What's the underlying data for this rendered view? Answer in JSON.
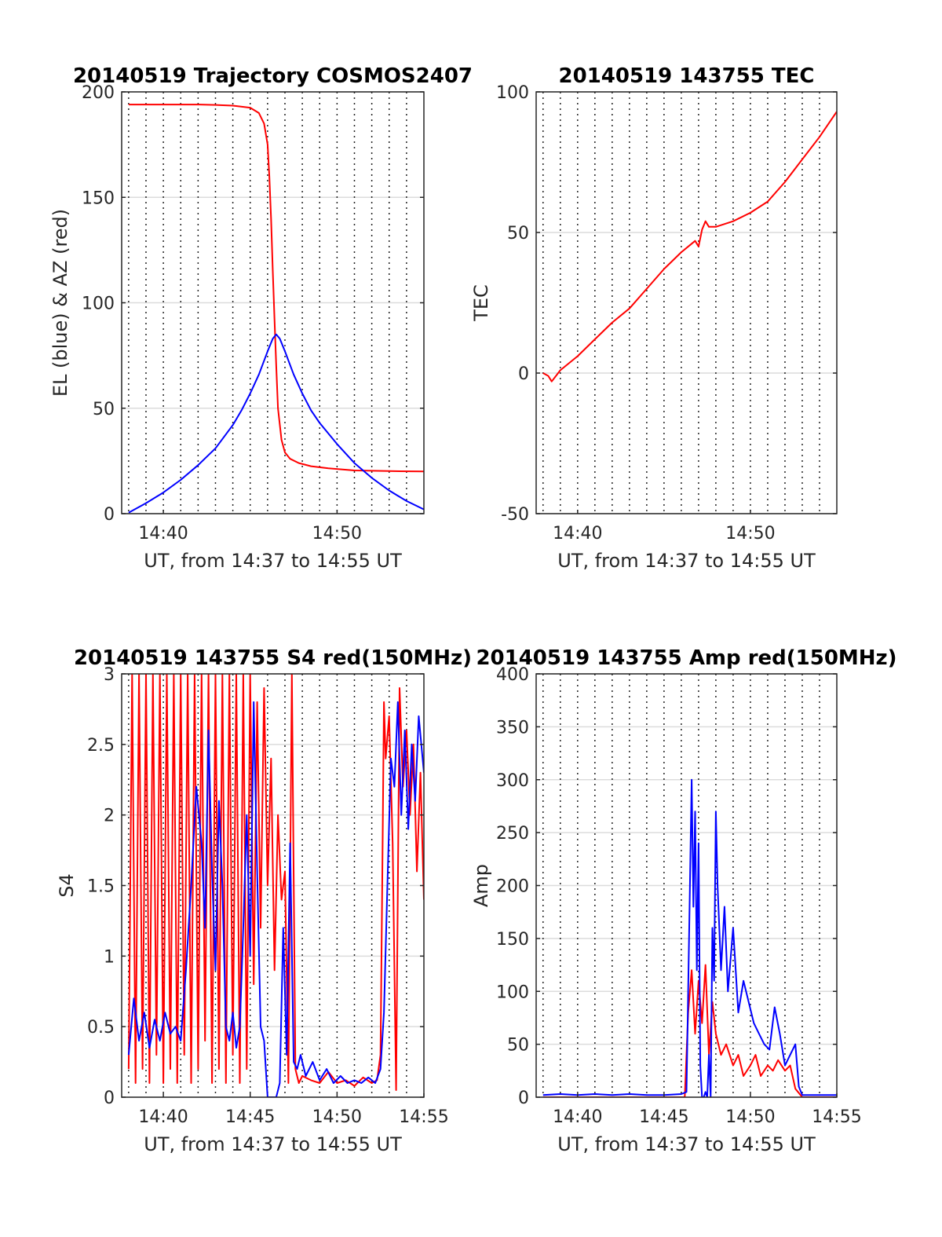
{
  "chart_data": [
    {
      "type": "line",
      "title": "20140519 Trajectory COSMOS2407",
      "xlabel": "UT, from 14:37 to 14:55 UT",
      "ylabel": "EL (blue) & AZ (red)",
      "xlim": [
        37.6,
        55
      ],
      "ylim": [
        0,
        200
      ],
      "yticks": [
        0,
        50,
        100,
        150,
        200
      ],
      "xticks": [
        {
          "v": 40,
          "label": "14:40"
        },
        {
          "v": 50,
          "label": "14:50"
        }
      ],
      "grid": true,
      "series": [
        {
          "color": "#ff0000",
          "x": [
            38,
            40,
            42,
            43,
            44,
            45,
            45.5,
            45.8,
            46.0,
            46.1,
            46.2,
            46.3,
            46.4,
            46.5,
            46.6,
            46.8,
            47.0,
            47.3,
            47.8,
            48.5,
            49.5,
            51,
            53,
            55
          ],
          "y": [
            194,
            194,
            194,
            193.8,
            193.5,
            192.5,
            190,
            185,
            175,
            160,
            140,
            115,
            92,
            70,
            50,
            35,
            29,
            26,
            24,
            22.5,
            21.5,
            20.5,
            20.2,
            20
          ]
        },
        {
          "color": "#0000ff",
          "x": [
            38,
            39,
            40,
            41,
            42,
            43,
            44,
            44.5,
            45,
            45.5,
            46,
            46.3,
            46.5,
            46.7,
            47,
            47.5,
            48,
            48.5,
            49,
            50,
            51,
            52,
            53,
            54,
            55
          ],
          "y": [
            0.5,
            5,
            10,
            16,
            23,
            31,
            42,
            49,
            57,
            66,
            77,
            83,
            85,
            83,
            77,
            66,
            57,
            49,
            43,
            33,
            24,
            17,
            11,
            6,
            2
          ]
        }
      ]
    },
    {
      "type": "line",
      "title": "20140519 143755 TEC",
      "xlabel": "UT, from 14:37 to 14:55 UT",
      "ylabel": "TEC",
      "xlim": [
        37.6,
        55
      ],
      "ylim": [
        -50,
        100
      ],
      "yticks": [
        -50,
        0,
        50,
        100
      ],
      "xticks": [
        {
          "v": 40,
          "label": "14:40"
        },
        {
          "v": 50,
          "label": "14:50"
        }
      ],
      "grid": true,
      "series": [
        {
          "color": "#ff0000",
          "x": [
            38,
            38.3,
            38.5,
            39,
            40,
            41,
            42,
            43,
            44,
            45,
            46,
            46.6,
            46.8,
            47.0,
            47.2,
            47.4,
            47.6,
            48,
            49,
            50,
            51,
            52,
            53,
            54,
            55
          ],
          "y": [
            0,
            -1,
            -3,
            1,
            6,
            12,
            18,
            23,
            30,
            37,
            43,
            46,
            47,
            45,
            51,
            54,
            52,
            52,
            54,
            57,
            61,
            68,
            76,
            84,
            93
          ]
        }
      ]
    },
    {
      "type": "line",
      "title": "20140519 143755 S4 red(150MHz)",
      "xlabel": "UT, from 14:37 to 14:55 UT",
      "ylabel": "S4",
      "xlim": [
        37.6,
        55
      ],
      "ylim": [
        0,
        3
      ],
      "yticks": [
        0,
        0.5,
        1,
        1.5,
        2,
        2.5,
        3
      ],
      "ytick_labels": [
        "0",
        "0.5",
        "1",
        "1.5",
        "2",
        "2.5",
        "3"
      ],
      "xticks": [
        {
          "v": 40,
          "label": "14:40"
        },
        {
          "v": 45,
          "label": "14:45"
        },
        {
          "v": 50,
          "label": "14:50"
        },
        {
          "v": 55,
          "label": "14:55"
        }
      ],
      "grid": true,
      "series": [
        {
          "color": "#ff0000",
          "x": [
            38.0,
            38.2,
            38.4,
            38.6,
            38.8,
            39.0,
            39.2,
            39.4,
            39.6,
            39.8,
            40.0,
            40.2,
            40.4,
            40.6,
            40.8,
            41.0,
            41.2,
            41.4,
            41.6,
            41.8,
            42.0,
            42.2,
            42.4,
            42.6,
            42.8,
            43.0,
            43.2,
            43.4,
            43.6,
            43.8,
            44.0,
            44.2,
            44.4,
            44.6,
            44.8,
            45.0,
            45.2,
            45.4,
            45.6,
            45.8,
            46.0,
            46.2,
            46.4,
            46.6,
            46.8,
            47.0,
            47.2,
            47.4,
            47.6,
            47.8,
            48.0,
            48.5,
            49.0,
            49.5,
            50.0,
            50.5,
            51.0,
            51.5,
            52.0,
            52.3,
            52.5,
            52.6,
            52.7,
            52.8,
            53.0,
            53.2,
            53.4,
            53.6,
            53.8,
            54.0,
            54.2,
            54.4,
            54.6,
            54.8,
            55.0
          ],
          "y": [
            0.2,
            3.0,
            0.1,
            3.0,
            0.2,
            3.0,
            0.1,
            3.0,
            0.3,
            3.0,
            0.1,
            3.0,
            0.2,
            3.0,
            0.1,
            3.0,
            0.3,
            3.0,
            0.1,
            3.0,
            0.2,
            3.0,
            0.4,
            3.0,
            0.1,
            3.0,
            0.2,
            3.0,
            0.1,
            3.0,
            0.3,
            3.0,
            0.1,
            3.0,
            0.2,
            3.0,
            0.8,
            2.8,
            1.2,
            2.9,
            1.5,
            2.4,
            0.9,
            2.0,
            1.4,
            1.6,
            0.1,
            3.0,
            0.2,
            0.1,
            0.15,
            0.12,
            0.1,
            0.18,
            0.1,
            0.12,
            0.08,
            0.14,
            0.1,
            0.12,
            0.3,
            1.5,
            2.8,
            2.4,
            2.7,
            1.8,
            0.05,
            2.9,
            2.2,
            2.6,
            2.0,
            2.5,
            1.6,
            2.3,
            1.4
          ]
        },
        {
          "color": "#0000ff",
          "x": [
            38.0,
            38.3,
            38.6,
            38.9,
            39.2,
            39.5,
            39.8,
            40.1,
            40.4,
            40.7,
            41.0,
            41.3,
            41.6,
            41.9,
            42.2,
            42.4,
            42.6,
            42.8,
            43.0,
            43.2,
            43.4,
            43.6,
            43.8,
            44.0,
            44.2,
            44.4,
            44.6,
            44.8,
            45.0,
            45.2,
            45.4,
            45.6,
            45.8,
            46.0,
            46.1,
            46.3,
            46.5,
            46.7,
            46.9,
            47.1,
            47.3,
            47.5,
            47.7,
            47.9,
            48.2,
            48.6,
            49.0,
            49.4,
            49.8,
            50.2,
            50.6,
            51.0,
            51.4,
            51.8,
            52.2,
            52.5,
            52.7,
            52.9,
            53.1,
            53.3,
            53.5,
            53.7,
            53.9,
            54.1,
            54.3,
            54.5,
            54.7,
            55.0
          ],
          "y": [
            0.3,
            0.7,
            0.4,
            0.6,
            0.35,
            0.55,
            0.4,
            0.6,
            0.45,
            0.5,
            0.4,
            0.9,
            1.5,
            2.2,
            1.8,
            1.2,
            2.6,
            1.6,
            0.9,
            2.1,
            1.5,
            0.5,
            0.4,
            0.6,
            0.35,
            0.5,
            1.2,
            2.0,
            1.0,
            2.8,
            1.6,
            0.5,
            0.4,
            0.0,
            0.0,
            0.0,
            0.0,
            0.1,
            1.2,
            0.3,
            1.8,
            0.25,
            0.2,
            0.3,
            0.15,
            0.25,
            0.12,
            0.2,
            0.1,
            0.15,
            0.1,
            0.12,
            0.1,
            0.14,
            0.1,
            0.2,
            0.6,
            1.5,
            2.4,
            2.2,
            2.8,
            2.0,
            2.6,
            1.9,
            2.5,
            2.1,
            2.7,
            2.3
          ]
        }
      ]
    },
    {
      "type": "line",
      "title": "20140519 143755 Amp red(150MHz)",
      "xlabel": "UT, from 14:37 to 14:55 UT",
      "ylabel": "Amp",
      "xlim": [
        37.6,
        55
      ],
      "ylim": [
        0,
        400
      ],
      "yticks": [
        0,
        50,
        100,
        150,
        200,
        250,
        300,
        350,
        400
      ],
      "xticks": [
        {
          "v": 40,
          "label": "14:40"
        },
        {
          "v": 45,
          "label": "14:45"
        },
        {
          "v": 50,
          "label": "14:50"
        },
        {
          "v": 55,
          "label": "14:55"
        }
      ],
      "grid": true,
      "series": [
        {
          "color": "#ff0000",
          "x": [
            38,
            40,
            42,
            44,
            45,
            46.2,
            46.4,
            46.6,
            46.8,
            47.0,
            47.2,
            47.4,
            47.6,
            47.8,
            48.0,
            48.3,
            48.6,
            49.0,
            49.3,
            49.6,
            50.0,
            50.3,
            50.6,
            51.0,
            51.3,
            51.6,
            52.0,
            52.3,
            52.6,
            53.0,
            54.0,
            55.0
          ],
          "y": [
            0,
            0,
            0,
            0,
            0,
            0,
            80,
            120,
            60,
            110,
            70,
            125,
            40,
            90,
            60,
            40,
            50,
            30,
            40,
            20,
            30,
            40,
            20,
            30,
            25,
            35,
            25,
            30,
            8,
            0,
            0,
            0
          ]
        },
        {
          "color": "#0000ff",
          "x": [
            38,
            39,
            40,
            41,
            42,
            43,
            44,
            45,
            46.0,
            46.3,
            46.5,
            46.6,
            46.7,
            46.8,
            46.9,
            47.0,
            47.1,
            47.2,
            47.3,
            47.4,
            47.5,
            47.6,
            47.7,
            47.8,
            47.9,
            48.0,
            48.1,
            48.3,
            48.5,
            48.7,
            49.0,
            49.3,
            49.6,
            49.9,
            50.2,
            50.5,
            50.8,
            51.1,
            51.4,
            51.7,
            52.0,
            52.3,
            52.6,
            52.8,
            53.0,
            54.0,
            55.0
          ],
          "y": [
            2,
            3,
            2,
            3,
            2,
            3,
            2,
            2,
            3,
            5,
            200,
            300,
            180,
            270,
            120,
            240,
            30,
            0,
            0,
            5,
            0,
            40,
            0,
            160,
            110,
            270,
            200,
            120,
            180,
            100,
            160,
            80,
            110,
            90,
            70,
            60,
            50,
            45,
            85,
            60,
            30,
            40,
            50,
            10,
            2,
            2,
            2
          ]
        }
      ]
    }
  ]
}
